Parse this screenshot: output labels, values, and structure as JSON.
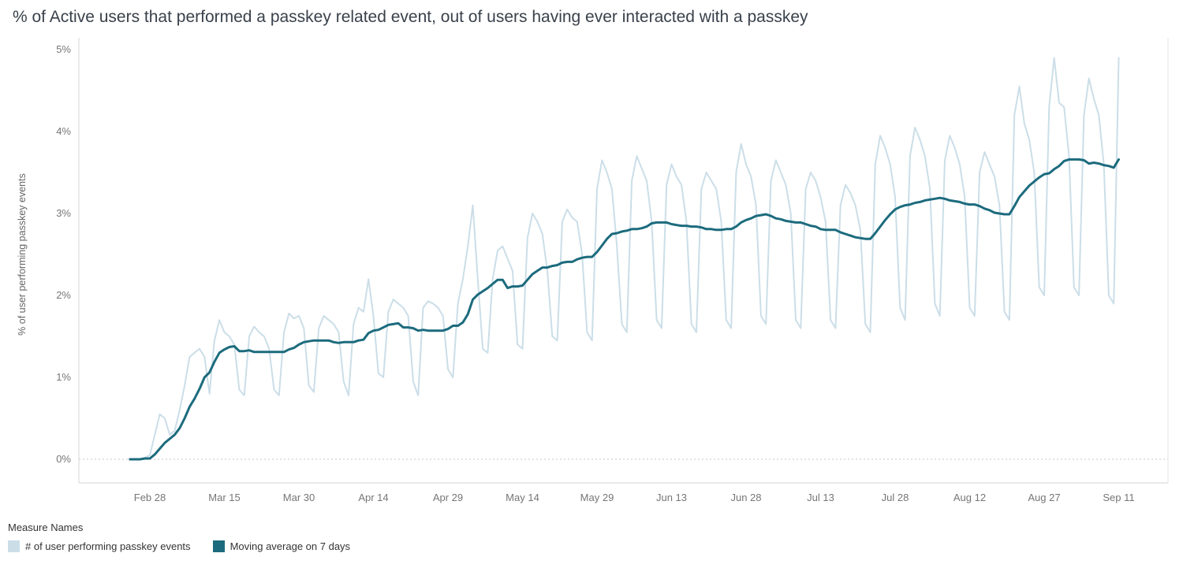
{
  "title": "% of Active users that performed a passkey related event, out of users having ever interacted with a passkey",
  "legend": {
    "title": "Measure Names",
    "items": [
      {
        "label": "# of user performing passkey events",
        "color": "#cbdee8"
      },
      {
        "label": "Moving average on 7 days",
        "color": "#1c6b7d"
      }
    ]
  },
  "colors": {
    "axis_line": "#d4d4d4",
    "pane_border": "#e3e3e3",
    "zero_line": "#c7c7c7",
    "tick_label": "#767676",
    "axis_title": "#666666"
  },
  "chart_data": {
    "type": "line",
    "title": "% of Active users that performed a passkey related event, out of users having ever interacted with a passkey",
    "xlabel": "",
    "ylabel": "% of user performing passkey events",
    "ylim": [
      0,
      5
    ],
    "y_ticks": [
      {
        "value": 0,
        "label": "0%"
      },
      {
        "value": 1,
        "label": "1%"
      },
      {
        "value": 2,
        "label": "2%"
      },
      {
        "value": 3,
        "label": "3%"
      },
      {
        "value": 4,
        "label": "4%"
      },
      {
        "value": 5,
        "label": "5%"
      }
    ],
    "grid": "dotted line at 0% only",
    "legend_position": "bottom-left",
    "x_unit": "days (index 0 = Feb 24, one point per day)",
    "x_domain": [
      0,
      199
    ],
    "x_ticks": [
      {
        "day": 4,
        "label": "Feb 28"
      },
      {
        "day": 19,
        "label": "Mar 15"
      },
      {
        "day": 34,
        "label": "Mar 30"
      },
      {
        "day": 49,
        "label": "Apr 14"
      },
      {
        "day": 64,
        "label": "Apr 29"
      },
      {
        "day": 79,
        "label": "May 14"
      },
      {
        "day": 94,
        "label": "May 29"
      },
      {
        "day": 109,
        "label": "Jun 13"
      },
      {
        "day": 124,
        "label": "Jun 28"
      },
      {
        "day": 139,
        "label": "Jul 13"
      },
      {
        "day": 154,
        "label": "Jul 28"
      },
      {
        "day": 169,
        "label": "Aug 12"
      },
      {
        "day": 184,
        "label": "Aug 27"
      },
      {
        "day": 199,
        "label": "Sep 11"
      }
    ],
    "series": [
      {
        "name": "# of user performing passkey events",
        "color": "#cbdee8",
        "stroke_width": 2,
        "values": [
          0,
          0,
          0,
          0.02,
          0.05,
          0.3,
          0.55,
          0.5,
          0.3,
          0.35,
          0.6,
          0.9,
          1.25,
          1.3,
          1.35,
          1.25,
          0.8,
          1.45,
          1.7,
          1.55,
          1.5,
          1.4,
          0.85,
          0.78,
          1.5,
          1.62,
          1.55,
          1.5,
          1.35,
          0.85,
          0.78,
          1.55,
          1.78,
          1.72,
          1.75,
          1.6,
          0.9,
          0.82,
          1.6,
          1.75,
          1.7,
          1.65,
          1.55,
          0.95,
          0.78,
          1.65,
          1.85,
          1.8,
          2.2,
          1.75,
          1.05,
          1.0,
          1.8,
          1.95,
          1.9,
          1.85,
          1.75,
          0.95,
          0.78,
          1.85,
          1.93,
          1.9,
          1.85,
          1.75,
          1.1,
          1.0,
          1.9,
          2.2,
          2.6,
          3.1,
          2.2,
          1.35,
          1.3,
          2.2,
          2.55,
          2.6,
          2.45,
          2.3,
          1.4,
          1.35,
          2.7,
          3.0,
          2.9,
          2.75,
          2.3,
          1.5,
          1.45,
          2.9,
          3.05,
          2.95,
          2.9,
          2.5,
          1.55,
          1.45,
          3.3,
          3.65,
          3.5,
          3.3,
          2.6,
          1.65,
          1.55,
          3.4,
          3.7,
          3.55,
          3.4,
          2.9,
          1.7,
          1.6,
          3.35,
          3.6,
          3.45,
          3.35,
          2.9,
          1.65,
          1.55,
          3.3,
          3.5,
          3.4,
          3.3,
          2.9,
          1.7,
          1.6,
          3.5,
          3.85,
          3.6,
          3.45,
          3.1,
          1.75,
          1.65,
          3.4,
          3.65,
          3.5,
          3.35,
          3.0,
          1.7,
          1.6,
          3.3,
          3.5,
          3.4,
          3.2,
          2.9,
          1.7,
          1.6,
          3.1,
          3.35,
          3.25,
          3.1,
          2.8,
          1.65,
          1.55,
          3.6,
          3.95,
          3.8,
          3.6,
          3.2,
          1.85,
          1.7,
          3.7,
          4.05,
          3.9,
          3.7,
          3.3,
          1.9,
          1.75,
          3.65,
          3.95,
          3.8,
          3.6,
          3.2,
          1.85,
          1.75,
          3.5,
          3.75,
          3.6,
          3.45,
          3.1,
          1.8,
          1.7,
          4.2,
          4.55,
          4.1,
          3.9,
          3.5,
          2.1,
          2.0,
          4.3,
          4.9,
          4.35,
          4.3,
          3.7,
          2.1,
          2.0,
          4.2,
          4.65,
          4.4,
          4.2,
          3.6,
          2.0,
          1.9,
          4.9
        ]
      },
      {
        "name": "Moving average on 7 days",
        "color": "#1c6b7d",
        "stroke_width": 3,
        "values": [
          0,
          0,
          0,
          0.01,
          0.01,
          0.06,
          0.13,
          0.2,
          0.25,
          0.3,
          0.38,
          0.5,
          0.64,
          0.74,
          0.86,
          1.0,
          1.06,
          1.19,
          1.3,
          1.34,
          1.37,
          1.38,
          1.32,
          1.32,
          1.33,
          1.31,
          1.31,
          1.31,
          1.31,
          1.31,
          1.31,
          1.31,
          1.34,
          1.36,
          1.4,
          1.43,
          1.44,
          1.45,
          1.45,
          1.45,
          1.45,
          1.43,
          1.42,
          1.43,
          1.43,
          1.43,
          1.45,
          1.46,
          1.54,
          1.57,
          1.58,
          1.61,
          1.64,
          1.65,
          1.66,
          1.61,
          1.61,
          1.6,
          1.57,
          1.58,
          1.57,
          1.57,
          1.57,
          1.57,
          1.59,
          1.63,
          1.63,
          1.67,
          1.77,
          1.95,
          2.01,
          2.05,
          2.09,
          2.14,
          2.19,
          2.19,
          2.09,
          2.11,
          2.11,
          2.12,
          2.19,
          2.26,
          2.3,
          2.34,
          2.34,
          2.36,
          2.37,
          2.4,
          2.41,
          2.41,
          2.44,
          2.46,
          2.47,
          2.47,
          2.53,
          2.61,
          2.69,
          2.75,
          2.76,
          2.78,
          2.79,
          2.81,
          2.81,
          2.82,
          2.84,
          2.88,
          2.89,
          2.89,
          2.89,
          2.87,
          2.86,
          2.85,
          2.85,
          2.84,
          2.84,
          2.83,
          2.81,
          2.81,
          2.8,
          2.8,
          2.81,
          2.81,
          2.84,
          2.89,
          2.92,
          2.94,
          2.97,
          2.98,
          2.99,
          2.97,
          2.94,
          2.93,
          2.91,
          2.9,
          2.89,
          2.89,
          2.87,
          2.85,
          2.84,
          2.81,
          2.8,
          2.8,
          2.8,
          2.77,
          2.75,
          2.73,
          2.71,
          2.7,
          2.69,
          2.69,
          2.76,
          2.84,
          2.92,
          2.99,
          3.05,
          3.08,
          3.1,
          3.11,
          3.13,
          3.14,
          3.16,
          3.17,
          3.18,
          3.19,
          3.18,
          3.16,
          3.15,
          3.14,
          3.12,
          3.11,
          3.11,
          3.09,
          3.06,
          3.04,
          3.01,
          3.0,
          2.99,
          2.99,
          3.09,
          3.2,
          3.27,
          3.34,
          3.39,
          3.44,
          3.48,
          3.49,
          3.54,
          3.58,
          3.64,
          3.66,
          3.66,
          3.66,
          3.65,
          3.61,
          3.62,
          3.61,
          3.59,
          3.58,
          3.56,
          3.66
        ]
      }
    ]
  }
}
